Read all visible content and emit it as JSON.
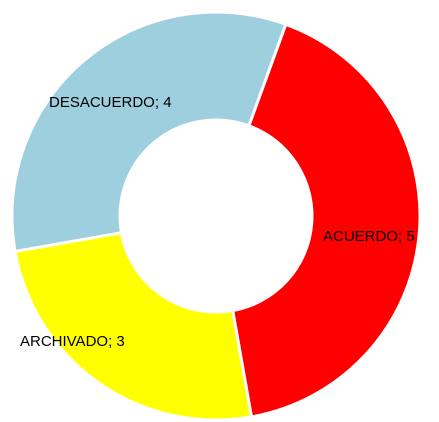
{
  "chart_data": {
    "type": "donut",
    "categories": [
      "ACUERDO",
      "ARCHIVADO",
      "DESACUERDO"
    ],
    "values": [
      5,
      3,
      4
    ],
    "colors": [
      "#ff0000",
      "#ffff00",
      "#9ecfdf"
    ],
    "start_angle": 20
  }
}
